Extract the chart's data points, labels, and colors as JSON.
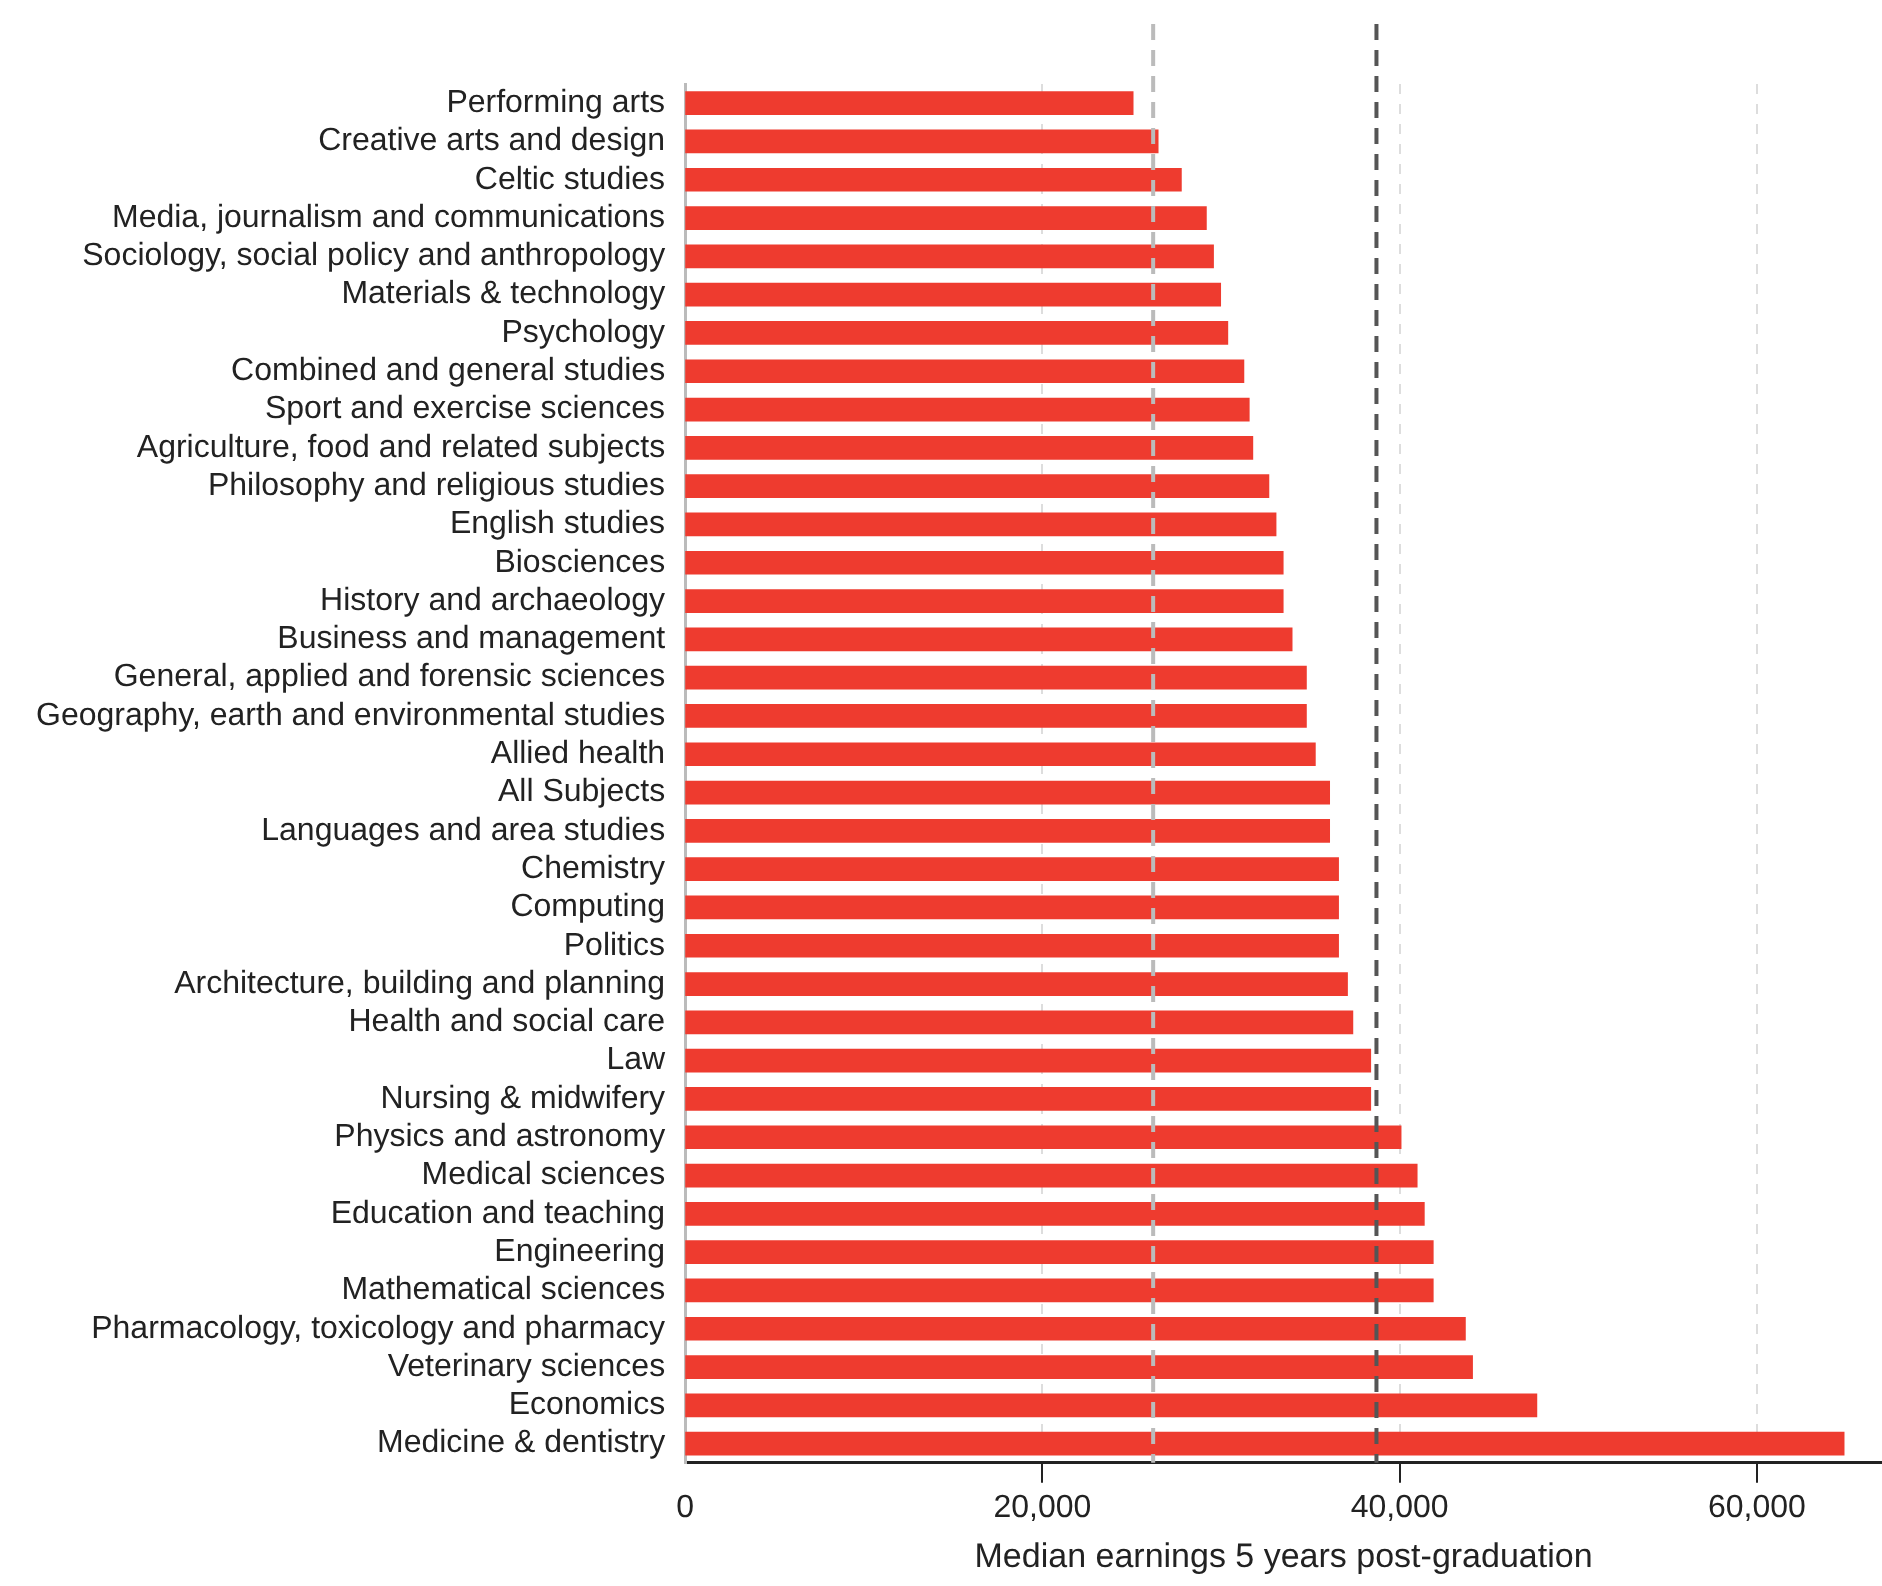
{
  "chart_data": {
    "type": "bar",
    "orientation": "horizontal",
    "xlabel": "Median earnings 5 years post-graduation",
    "categories": [
      "Performing arts",
      "Creative arts and design",
      "Celtic studies",
      "Media, journalism and communications",
      "Sociology, social policy and anthropology",
      "Materials & technology",
      "Psychology",
      "Combined and general studies",
      "Sport and exercise sciences",
      "Agriculture, food and related subjects",
      "Philosophy and religious studies",
      "English studies",
      "Biosciences",
      "History and archaeology",
      "Business and management",
      "General, applied and forensic sciences",
      "Geography, earth and environmental studies",
      "Allied health",
      "All Subjects",
      "Languages and area studies",
      "Chemistry",
      "Computing",
      "Politics",
      "Architecture, building and planning",
      "Health and social care",
      "Law",
      "Nursing & midwifery",
      "Physics and astronomy",
      "Medical sciences",
      "Education and teaching",
      "Engineering",
      "Mathematical sciences",
      "Pharmacology, toxicology and pharmacy",
      "Veterinary sciences",
      "Economics",
      "Medicine & dentistry"
    ],
    "series": [
      {
        "color": "#ee3b2f",
        "values": [
          25100,
          26500,
          27800,
          29200,
          29600,
          30000,
          30400,
          31300,
          31600,
          31800,
          32700,
          33100,
          33500,
          33500,
          34000,
          34800,
          34800,
          35300,
          36100,
          36100,
          36600,
          36600,
          36600,
          37100,
          37400,
          38400,
          38400,
          40100,
          41000,
          41400,
          41900,
          41900,
          43700,
          44100,
          47700,
          64900
        ]
      }
    ],
    "xlim": [
      0,
      67000
    ],
    "xticks": [
      0,
      {
        "value": 20000,
        "label": "20,000"
      },
      {
        "value": 40000,
        "label": "40,000"
      },
      {
        "value": 60000,
        "label": "60,000"
      }
    ],
    "grid": "x",
    "legend": false,
    "ref_lines": [
      {
        "axis": "x",
        "value": 26200,
        "color": "#bbbbbb",
        "line_style": "dashed"
      },
      {
        "axis": "x",
        "value": 38700,
        "color": "#555555",
        "line_style": "dashed"
      }
    ]
  }
}
